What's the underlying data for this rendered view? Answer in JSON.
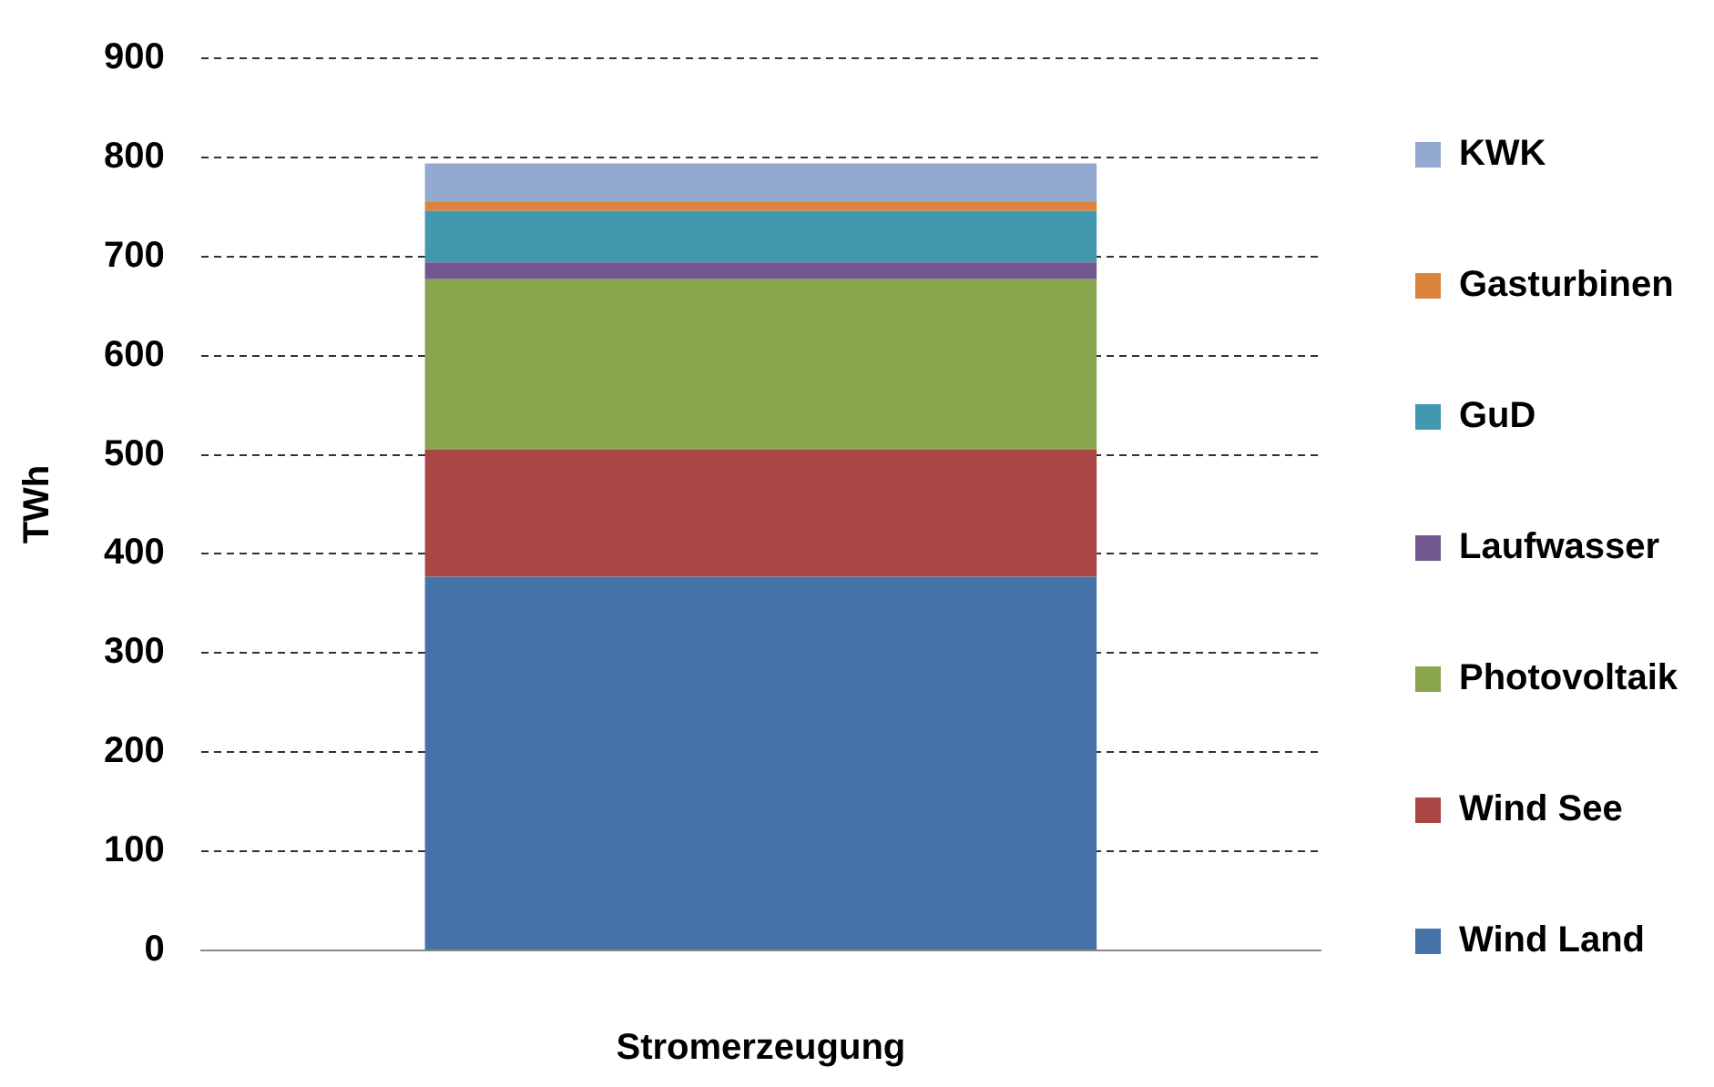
{
  "chart_data": {
    "type": "bar",
    "stacked": true,
    "xlabel": "Stromerzeugung",
    "ylabel": "TWh",
    "categories": [
      null
    ],
    "series": [
      {
        "name": "Wind Land",
        "color": "#4572a7",
        "values": [
          377
        ]
      },
      {
        "name": "Wind See",
        "color": "#aa4643",
        "values": [
          128
        ]
      },
      {
        "name": "Photovoltaik",
        "color": "#89a54e",
        "values": [
          172
        ]
      },
      {
        "name": "Laufwasser",
        "color": "#71588f",
        "values": [
          17
        ]
      },
      {
        "name": "GuD",
        "color": "#4198af",
        "values": [
          52
        ]
      },
      {
        "name": "Gasturbinen",
        "color": "#db843d",
        "values": [
          9
        ]
      },
      {
        "name": "KWK",
        "color": "#93a9cf",
        "values": [
          39
        ]
      }
    ],
    "ylim": [
      0,
      900
    ],
    "yticks": [
      0,
      100,
      200,
      300,
      400,
      500,
      600,
      700,
      800,
      900
    ],
    "grid": "y",
    "legend": "right"
  }
}
